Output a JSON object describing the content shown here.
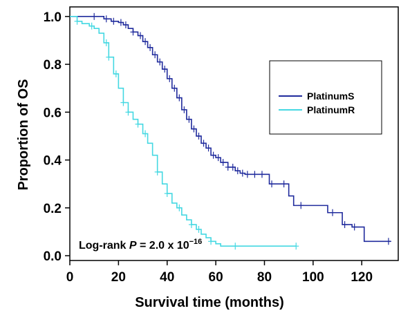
{
  "chart_data": {
    "type": "line",
    "subtype": "kaplan-meier",
    "xlabel": "Survival time (months)",
    "ylabel": "Proportion of OS",
    "xlim": [
      0,
      135
    ],
    "ylim": [
      -0.02,
      1.04
    ],
    "xticks": [
      0,
      20,
      40,
      60,
      80,
      100,
      120
    ],
    "yticks": [
      "0.0",
      "0.2",
      "0.4",
      "0.6",
      "0.8",
      "1.0"
    ],
    "grid": false,
    "legend_position": "right",
    "annotation": {
      "prefix": "Log-rank ",
      "p_label": "P",
      "equals": " = 2.0 x 10",
      "exponent": "−16"
    },
    "series": [
      {
        "name": "PlatinumS",
        "color": "#1f2a9c",
        "x": [
          0,
          14,
          17,
          20,
          22,
          24,
          26,
          28,
          30,
          32,
          34,
          36,
          38,
          40,
          42,
          44,
          46,
          48,
          50,
          52,
          54,
          56,
          58,
          60,
          62,
          65,
          68,
          70,
          72,
          75,
          78,
          82,
          90,
          92,
          100,
          106,
          112,
          116,
          121,
          132
        ],
        "y": [
          1.0,
          0.99,
          0.98,
          0.975,
          0.965,
          0.95,
          0.935,
          0.92,
          0.895,
          0.87,
          0.84,
          0.81,
          0.78,
          0.74,
          0.7,
          0.66,
          0.61,
          0.57,
          0.53,
          0.5,
          0.47,
          0.45,
          0.42,
          0.41,
          0.39,
          0.37,
          0.355,
          0.345,
          0.34,
          0.34,
          0.34,
          0.3,
          0.25,
          0.21,
          0.21,
          0.18,
          0.13,
          0.12,
          0.06,
          0.06
        ],
        "censor_x": [
          10,
          15,
          18,
          21,
          23,
          26,
          29,
          31,
          33,
          35,
          37,
          39,
          41,
          43,
          45,
          47,
          49,
          51,
          53,
          55,
          57,
          59,
          61,
          63,
          65,
          67,
          69,
          71,
          73,
          76,
          79,
          83,
          88,
          95,
          108,
          113,
          117,
          131
        ]
      },
      {
        "name": "PlatinumR",
        "color": "#44d8e2",
        "x": [
          0,
          3,
          5,
          8,
          10,
          12,
          14,
          16,
          18,
          20,
          22,
          24,
          26,
          28,
          30,
          32,
          34,
          36,
          38,
          40,
          42,
          44,
          46,
          48,
          50,
          52,
          54,
          56,
          58,
          60,
          62,
          93
        ],
        "y": [
          1.0,
          0.98,
          0.97,
          0.96,
          0.95,
          0.93,
          0.89,
          0.83,
          0.76,
          0.7,
          0.64,
          0.6,
          0.57,
          0.55,
          0.51,
          0.47,
          0.42,
          0.35,
          0.3,
          0.26,
          0.22,
          0.2,
          0.17,
          0.15,
          0.13,
          0.11,
          0.09,
          0.075,
          0.06,
          0.05,
          0.04,
          0.04
        ]
      }
    ],
    "censor_r_x": [
      3,
      9,
      15,
      16,
      19,
      22,
      24,
      28,
      31,
      36,
      40,
      45,
      50,
      53,
      58,
      68,
      93
    ]
  }
}
